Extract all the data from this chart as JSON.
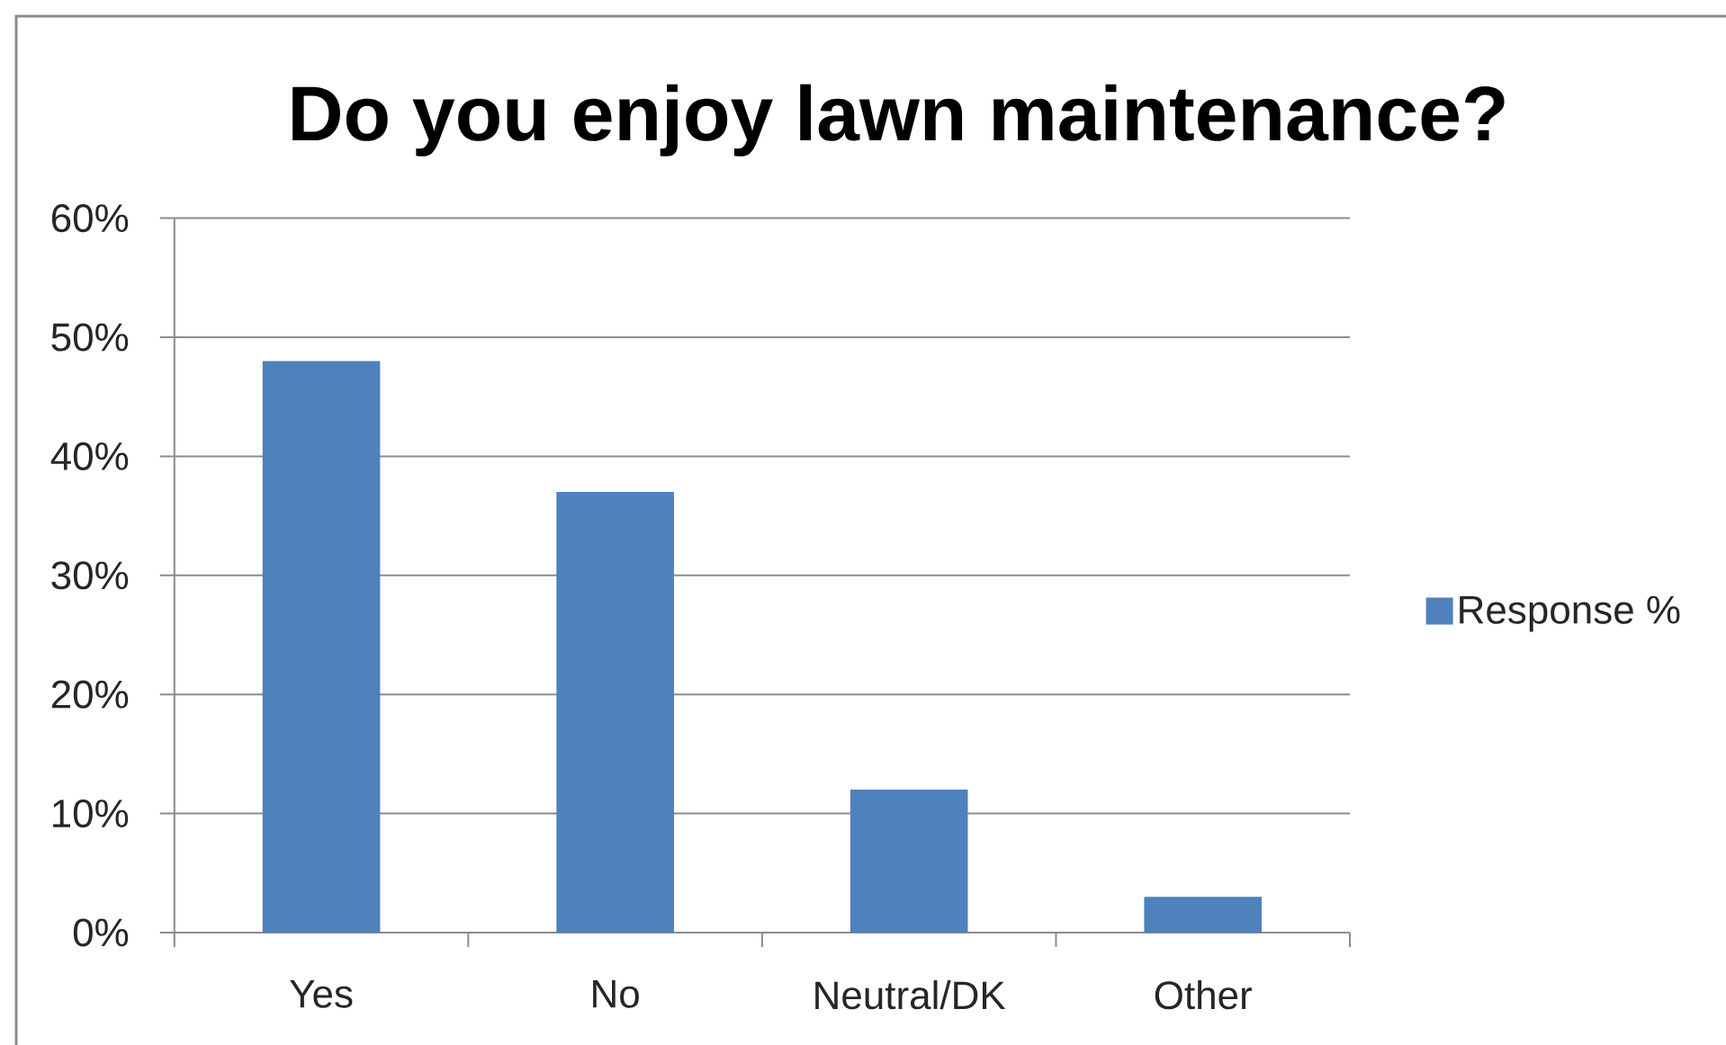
{
  "chart_data": {
    "type": "bar",
    "title": "Do you enjoy lawn maintenance?",
    "categories": [
      "Yes",
      "No",
      "Neutral/DK",
      "Other"
    ],
    "series": [
      {
        "name": "Response %",
        "color": "#4f81bd",
        "values": [
          48,
          37,
          12,
          3
        ]
      }
    ],
    "ylim": [
      0,
      60
    ],
    "yticks": [
      {
        "value": 0,
        "label": "0%"
      },
      {
        "value": 10,
        "label": "10%"
      },
      {
        "value": 20,
        "label": "20%"
      },
      {
        "value": 30,
        "label": "30%"
      },
      {
        "value": 40,
        "label": "40%"
      },
      {
        "value": 50,
        "label": "50%"
      },
      {
        "value": 60,
        "label": "60%"
      }
    ],
    "grid": "y",
    "legend": "right"
  }
}
